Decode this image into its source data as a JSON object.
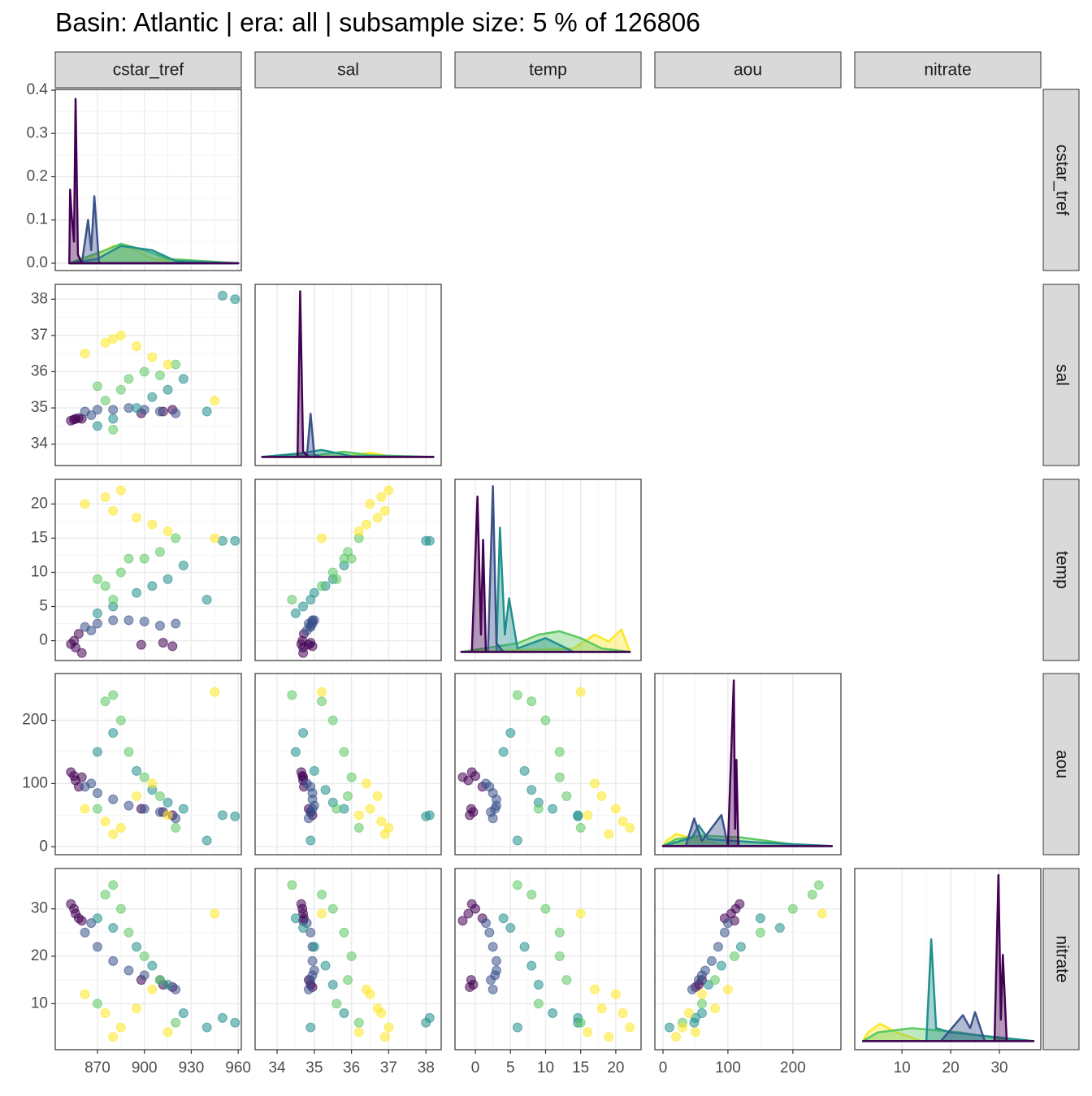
{
  "chart_data": {
    "type": "pairs",
    "title": "Basin: Atlantic | era: all | subsample size: 5 % of 126806",
    "variables": [
      {
        "name": "cstar_tref",
        "lim": [
          843,
          962
        ],
        "ticks": [
          870,
          900,
          930,
          960
        ],
        "density_lim": [
          -0.017,
          0.402
        ],
        "density_ticks": [
          {
            "value": 0,
            "label": "0.0"
          },
          {
            "value": 0.1,
            "label": "0.1"
          },
          {
            "value": 0.2,
            "label": "0.2"
          },
          {
            "value": 0.3,
            "label": "0.3"
          },
          {
            "value": 0.4,
            "label": "0.4"
          }
        ]
      },
      {
        "name": "sal",
        "lim": [
          33.41,
          38.41
        ],
        "ticks": [
          34,
          35,
          36,
          37,
          38
        ],
        "density_lim": [
          -0.5,
          10
        ]
      },
      {
        "name": "temp",
        "lim": [
          -2.9,
          23.6
        ],
        "ticks": [
          0,
          5,
          10,
          15,
          20
        ],
        "density_lim": [
          -0.05,
          1.0
        ]
      },
      {
        "name": "aou",
        "lim": [
          -12.5,
          274
        ],
        "ticks": [
          0,
          100,
          200
        ],
        "density_lim": [
          -0.005,
          0.1
        ]
      },
      {
        "name": "nitrate",
        "lim": [
          0.3,
          38.5
        ],
        "ticks": [
          10,
          20,
          30
        ],
        "density_lim": [
          -0.02,
          0.4
        ]
      }
    ],
    "groups": [
      {
        "color": "#440154",
        "points": [
          [
            853,
            34.65,
            -0.5,
            118,
            31
          ],
          [
            855,
            34.68,
            0,
            112,
            30
          ],
          [
            856,
            34.7,
            -1,
            105,
            29
          ],
          [
            858,
            34.72,
            1,
            95,
            28
          ],
          [
            860,
            34.7,
            -1.8,
            110,
            27.5
          ],
          [
            898,
            34.85,
            -0.6,
            60,
            15
          ],
          [
            912,
            34.9,
            -0.3,
            55,
            14
          ],
          [
            918,
            34.95,
            -0.8,
            50,
            13.5
          ]
        ],
        "densities": [
          [
            [
              852,
              0
            ],
            [
              852.5,
              0.17
            ],
            [
              853.5,
              0.11
            ],
            [
              855,
              0.05
            ],
            [
              856,
              0.38
            ],
            [
              857.5,
              0.02
            ],
            [
              860,
              0
            ],
            [
              960,
              0
            ]
          ],
          [
            [
              33.6,
              0
            ],
            [
              34.55,
              0
            ],
            [
              34.62,
              9.6
            ],
            [
              34.7,
              0.3
            ],
            [
              34.85,
              0
            ],
            [
              38.2,
              0
            ]
          ],
          [
            [
              -2,
              0
            ],
            [
              -0.5,
              0
            ],
            [
              0.3,
              0.9
            ],
            [
              0.8,
              0.1
            ],
            [
              1.1,
              0.65
            ],
            [
              1.5,
              0
            ],
            [
              22,
              0
            ]
          ],
          [
            [
              0,
              0
            ],
            [
              100,
              0
            ],
            [
              109,
              0.096
            ],
            [
              111,
              0.01
            ],
            [
              113,
              0.05
            ],
            [
              116,
              0
            ],
            [
              260,
              0
            ]
          ],
          [
            [
              2,
              0
            ],
            [
              29,
              0
            ],
            [
              29.8,
              0.385
            ],
            [
              30.3,
              0.05
            ],
            [
              30.7,
              0.2
            ],
            [
              31.5,
              0
            ],
            [
              37,
              0
            ]
          ]
        ]
      },
      {
        "color": "#3b528b",
        "points": [
          [
            862,
            34.9,
            2,
            95,
            25
          ],
          [
            870,
            34.95,
            2.5,
            85,
            22
          ],
          [
            880,
            34.95,
            3,
            75,
            19
          ],
          [
            890,
            35.0,
            3,
            65,
            17
          ],
          [
            900,
            34.95,
            2.8,
            60,
            16
          ],
          [
            910,
            34.9,
            2.2,
            55,
            15
          ],
          [
            920,
            34.85,
            2.5,
            45,
            13
          ],
          [
            866,
            34.8,
            1.5,
            100,
            27
          ]
        ],
        "densities": [
          [
            [
              852,
              0
            ],
            [
              860,
              0
            ],
            [
              864,
              0.1
            ],
            [
              866,
              0.03
            ],
            [
              868,
              0.155
            ],
            [
              871,
              0
            ],
            [
              900,
              0
            ],
            [
              960,
              0
            ]
          ],
          [
            [
              33.6,
              0
            ],
            [
              34.8,
              0
            ],
            [
              34.9,
              2.5
            ],
            [
              35.0,
              0.1
            ],
            [
              35.2,
              0
            ],
            [
              38.2,
              0
            ]
          ],
          [
            [
              -2,
              0
            ],
            [
              1.8,
              0
            ],
            [
              2.5,
              0.96
            ],
            [
              3.0,
              0.05
            ],
            [
              4,
              0
            ],
            [
              22,
              0
            ]
          ],
          [
            [
              0,
              0
            ],
            [
              35,
              0
            ],
            [
              48,
              0.016
            ],
            [
              60,
              0.003
            ],
            [
              90,
              0.018
            ],
            [
              100,
              0
            ],
            [
              260,
              0
            ]
          ],
          [
            [
              2,
              0
            ],
            [
              18,
              0
            ],
            [
              22.5,
              0.06
            ],
            [
              24,
              0.03
            ],
            [
              25,
              0.067
            ],
            [
              27,
              0
            ],
            [
              37,
              0
            ]
          ]
        ]
      },
      {
        "color": "#21908d",
        "points": [
          [
            870,
            34.5,
            4,
            150,
            28
          ],
          [
            880,
            34.7,
            5,
            180,
            26
          ],
          [
            895,
            35.0,
            7,
            120,
            22
          ],
          [
            905,
            35.3,
            8,
            90,
            18
          ],
          [
            915,
            35.5,
            9,
            70,
            14
          ],
          [
            925,
            35.8,
            11,
            60,
            8
          ],
          [
            950,
            38.1,
            14.6,
            50,
            7
          ],
          [
            958,
            38.0,
            14.6,
            48,
            6
          ],
          [
            940,
            34.9,
            6,
            10,
            5
          ]
        ],
        "densities": [
          [
            [
              852,
              0
            ],
            [
              870,
              0.01
            ],
            [
              885,
              0.04
            ],
            [
              905,
              0.03
            ],
            [
              920,
              0.005
            ],
            [
              960,
              0
            ]
          ],
          [
            [
              33.6,
              0
            ],
            [
              34.6,
              0.2
            ],
            [
              35.2,
              0.4
            ],
            [
              36,
              0.05
            ],
            [
              38.2,
              0
            ]
          ],
          [
            [
              -2,
              0
            ],
            [
              3,
              0
            ],
            [
              3.5,
              0.72
            ],
            [
              4.2,
              0.1
            ],
            [
              4.8,
              0.31
            ],
            [
              6,
              0.02
            ],
            [
              10,
              0.08
            ],
            [
              14,
              0
            ],
            [
              22,
              0
            ]
          ],
          [
            [
              0,
              0
            ],
            [
              45,
              0.005
            ],
            [
              55,
              0.012
            ],
            [
              70,
              0.004
            ],
            [
              150,
              0.002
            ],
            [
              260,
              0
            ]
          ],
          [
            [
              2,
              0
            ],
            [
              15,
              0
            ],
            [
              16,
              0.236
            ],
            [
              17,
              0.03
            ],
            [
              20,
              0.02
            ],
            [
              37,
              0
            ]
          ]
        ]
      },
      {
        "color": "#5dc863",
        "points": [
          [
            875,
            35.2,
            8,
            230,
            33
          ],
          [
            885,
            35.5,
            10,
            200,
            30
          ],
          [
            890,
            35.8,
            12,
            150,
            25
          ],
          [
            900,
            36.0,
            12,
            110,
            20
          ],
          [
            910,
            35.9,
            13,
            80,
            15
          ],
          [
            880,
            34.4,
            6,
            240,
            35
          ],
          [
            920,
            36.2,
            15,
            30,
            6
          ],
          [
            870,
            35.6,
            9,
            60,
            10
          ]
        ],
        "densities": [
          [
            [
              852,
              0
            ],
            [
              875,
              0.03
            ],
            [
              885,
              0.045
            ],
            [
              900,
              0.03
            ],
            [
              915,
              0.01
            ],
            [
              960,
              0
            ]
          ],
          [
            [
              33.6,
              0
            ],
            [
              35,
              0.1
            ],
            [
              35.8,
              0.3
            ],
            [
              36.5,
              0.1
            ],
            [
              38.2,
              0
            ]
          ],
          [
            [
              -2,
              0
            ],
            [
              6,
              0.05
            ],
            [
              9,
              0.1
            ],
            [
              12,
              0.12
            ],
            [
              15,
              0.08
            ],
            [
              18,
              0.02
            ],
            [
              22,
              0
            ]
          ],
          [
            [
              0,
              0
            ],
            [
              20,
              0.004
            ],
            [
              60,
              0.006
            ],
            [
              120,
              0.005
            ],
            [
              200,
              0.001
            ],
            [
              260,
              0
            ]
          ],
          [
            [
              2,
              0
            ],
            [
              5,
              0.02
            ],
            [
              12,
              0.03
            ],
            [
              22,
              0.02
            ],
            [
              30,
              0.005
            ],
            [
              37,
              0
            ]
          ]
        ]
      },
      {
        "color": "#fde725",
        "points": [
          [
            862,
            36.5,
            20,
            60,
            12
          ],
          [
            875,
            36.8,
            21,
            40,
            8
          ],
          [
            885,
            37.0,
            22,
            30,
            5
          ],
          [
            895,
            36.7,
            18,
            80,
            9
          ],
          [
            905,
            36.4,
            17,
            100,
            13
          ],
          [
            915,
            36.2,
            16,
            50,
            4
          ],
          [
            880,
            36.9,
            19,
            20,
            3
          ],
          [
            945,
            35.2,
            15,
            245,
            29
          ]
        ],
        "densities": [
          [
            [
              852,
              0
            ],
            [
              870,
              0.02
            ],
            [
              880,
              0.04
            ],
            [
              892,
              0.035
            ],
            [
              905,
              0.01
            ],
            [
              960,
              0
            ]
          ],
          [
            [
              33.6,
              0
            ],
            [
              35.8,
              0.05
            ],
            [
              36.5,
              0.25
            ],
            [
              37,
              0.05
            ],
            [
              38.2,
              0
            ]
          ],
          [
            [
              -2,
              0
            ],
            [
              14,
              0.02
            ],
            [
              17,
              0.1
            ],
            [
              19,
              0.06
            ],
            [
              20.8,
              0.13
            ],
            [
              22,
              0
            ]
          ],
          [
            [
              0,
              0
            ],
            [
              5,
              0.003
            ],
            [
              20,
              0.007
            ],
            [
              50,
              0.004
            ],
            [
              100,
              0
            ],
            [
              260,
              0
            ]
          ],
          [
            [
              2,
              0
            ],
            [
              3,
              0.02
            ],
            [
              5.5,
              0.04
            ],
            [
              9,
              0.02
            ],
            [
              14,
              0
            ],
            [
              37,
              0
            ]
          ]
        ]
      }
    ]
  }
}
